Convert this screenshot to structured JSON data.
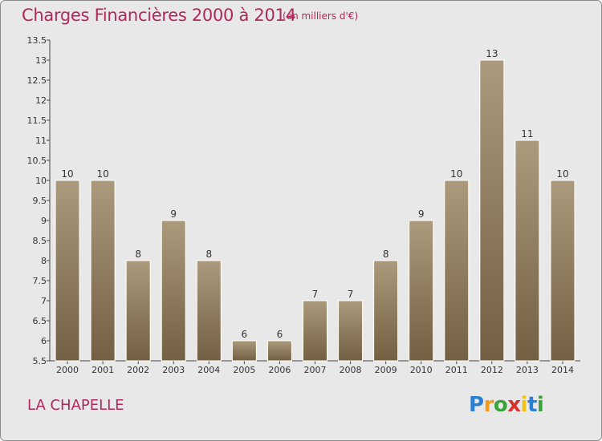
{
  "header": {
    "title": "Charges Financières 2000 à 2014",
    "subtitle": "(en milliers d'€)"
  },
  "footer": {
    "town": "LA CHAPELLE",
    "logo_text": "Proxiti"
  },
  "colors": {
    "title": "#b0285a",
    "background": "#e8e8e8",
    "bar_top": "#ab9a7c",
    "bar_bottom": "#735f42",
    "logo": [
      "#2a7fd4",
      "#f39a1e",
      "#3aa23a",
      "#d8312a",
      "#f2c20f",
      "#2a7fd4",
      "#3aa23a"
    ]
  },
  "chart_data": {
    "type": "bar",
    "categories": [
      "2000",
      "2001",
      "2002",
      "2003",
      "2004",
      "2005",
      "2006",
      "2007",
      "2008",
      "2009",
      "2010",
      "2011",
      "2012",
      "2013",
      "2014"
    ],
    "values": [
      10,
      10,
      8,
      9,
      8,
      6,
      6,
      7,
      7,
      8,
      9,
      10,
      13,
      11,
      10
    ],
    "value_labels": [
      "10",
      "10",
      "8",
      "9",
      "8",
      "6",
      "6",
      "7",
      "7",
      "8",
      "9",
      "10",
      "13",
      "11",
      "10"
    ],
    "ylim": [
      5.5,
      13.5
    ],
    "yticks": [
      5.5,
      6,
      6.5,
      7,
      7.5,
      8,
      8.5,
      9,
      9.5,
      10,
      10.5,
      11,
      11.5,
      12,
      12.5,
      13,
      13.5
    ],
    "ytick_labels": [
      "5.5",
      "6",
      "6.5",
      "7",
      "7.5",
      "8",
      "8.5",
      "9",
      "9.5",
      "10",
      "10.5",
      "11",
      "11.5",
      "12",
      "12.5",
      "13",
      "13.5"
    ],
    "grid": false,
    "legend": "none"
  }
}
